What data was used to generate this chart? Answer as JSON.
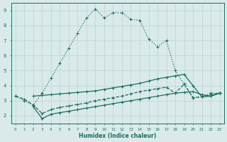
{
  "xlabel": "Humidex (Indice chaleur)",
  "bg_color": "#daeaea",
  "grid_color": "#b8d4d4",
  "line_color": "#1a6e5e",
  "xlim": [
    -0.5,
    23.5
  ],
  "ylim": [
    1.5,
    9.5
  ],
  "yticks": [
    2,
    3,
    4,
    5,
    6,
    7,
    8,
    9
  ],
  "xticks": [
    0,
    1,
    2,
    3,
    4,
    5,
    6,
    7,
    8,
    9,
    10,
    11,
    12,
    13,
    14,
    15,
    16,
    17,
    18,
    19,
    20,
    21,
    22,
    23
  ],
  "s1_x": [
    0,
    1,
    2,
    3,
    4,
    5,
    6,
    7,
    8,
    9,
    10,
    11,
    12,
    13,
    14,
    15,
    16,
    17,
    18,
    19,
    20,
    21,
    22,
    23
  ],
  "s1_y": [
    3.3,
    3.0,
    2.7,
    3.5,
    4.5,
    5.5,
    6.5,
    7.5,
    8.5,
    9.1,
    8.5,
    8.85,
    8.85,
    8.4,
    8.35,
    7.1,
    6.6,
    7.0,
    5.0,
    4.1,
    3.2,
    3.25,
    3.5,
    3.5
  ],
  "s1_style": "dotted",
  "s1_marker": true,
  "s2_x": [
    2,
    3,
    4,
    5,
    6,
    7,
    8,
    9,
    10,
    11,
    12,
    13,
    14,
    15,
    16,
    17,
    18,
    19,
    20,
    21,
    22,
    23
  ],
  "s2_y": [
    3.3,
    3.35,
    3.4,
    3.45,
    3.5,
    3.55,
    3.6,
    3.65,
    3.75,
    3.85,
    3.95,
    4.05,
    4.15,
    4.3,
    4.45,
    4.55,
    4.65,
    4.75,
    4.0,
    3.25,
    3.3,
    3.5
  ],
  "s2_style": "solid",
  "s3_x": [
    0,
    1,
    2,
    3,
    4,
    5,
    6,
    7,
    8,
    9,
    10,
    11,
    12,
    13,
    14,
    15,
    16,
    17,
    18,
    19,
    20,
    21,
    22,
    23
  ],
  "s3_y": [
    3.3,
    3.1,
    2.7,
    2.15,
    2.4,
    2.55,
    2.65,
    2.75,
    2.85,
    3.0,
    3.1,
    3.2,
    3.3,
    3.45,
    3.6,
    3.7,
    3.8,
    3.9,
    3.5,
    4.1,
    3.2,
    3.25,
    3.4,
    3.5
  ],
  "s3_style": "dashed",
  "s3_marker": true,
  "s4_x": [
    2,
    3,
    4,
    5,
    6,
    7,
    8,
    9,
    10,
    11,
    12,
    13,
    14,
    15,
    16,
    17,
    18,
    19,
    20,
    21,
    22,
    23
  ],
  "s4_y": [
    2.6,
    1.8,
    2.1,
    2.2,
    2.3,
    2.4,
    2.5,
    2.6,
    2.7,
    2.8,
    2.9,
    3.0,
    3.1,
    3.2,
    3.3,
    3.4,
    3.5,
    3.55,
    3.6,
    3.4,
    3.3,
    3.5
  ],
  "s4_style": "solid"
}
